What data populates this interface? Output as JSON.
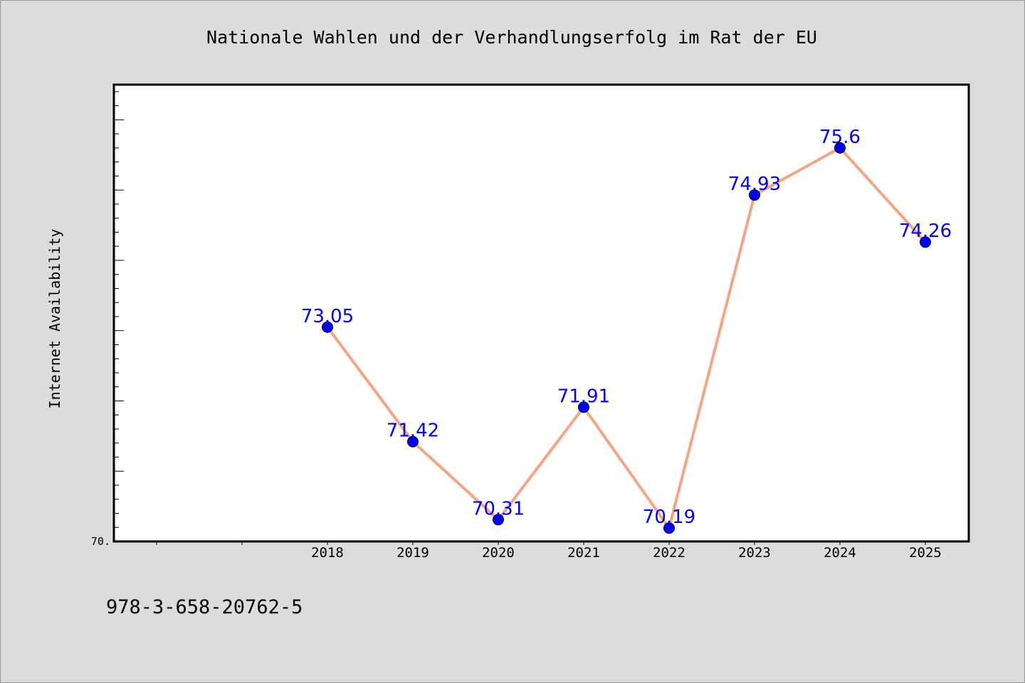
{
  "chart_data": {
    "type": "line",
    "title": "Nationale Wahlen und der Verhandlungserfolg im Rat der EU",
    "xlabel": "",
    "ylabel": "Internet Availability",
    "x": [
      "2018",
      "2019",
      "2020",
      "2021",
      "2022",
      "2023",
      "2024",
      "2025"
    ],
    "values": [
      73.05,
      71.42,
      70.31,
      71.91,
      70.19,
      74.93,
      75.6,
      74.26
    ],
    "data_labels": [
      "73.05",
      "71.42",
      "70.31",
      "71.91",
      "70.19",
      "74.93",
      "75.6",
      "74.26"
    ],
    "x_ticks": [
      "2018",
      "2019",
      "2020",
      "2021",
      "2022",
      "2023",
      "2024",
      "2025"
    ],
    "y_tick_labels": [
      "70."
    ],
    "ylim": [
      70.0,
      76.5
    ],
    "grid": false,
    "legend": "none",
    "colors": {
      "line": "#f4a582",
      "marker": "#0000ff",
      "label": "#0000ff",
      "plot_background": "#ffffff",
      "figure_background": "#dcdcdc"
    }
  },
  "footer": {
    "isbn": "978-3-658-20762-5"
  }
}
